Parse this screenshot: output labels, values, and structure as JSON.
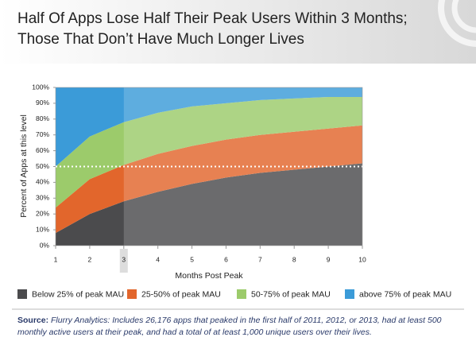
{
  "chart_data": {
    "type": "stacked_area",
    "title": "Half Of Apps Lose Half Their Peak Users Within 3 Months;",
    "subtitle": "Those That Don’t Have Much Longer Lives",
    "x_label": "Months Post Peak",
    "y_label": "Percent of Apps at this level",
    "x": [
      1,
      2,
      3,
      4,
      5,
      6,
      7,
      8,
      9,
      10
    ],
    "xlim": [
      1,
      10
    ],
    "xticks": [
      1,
      2,
      3,
      4,
      5,
      6,
      7,
      8,
      9,
      10
    ],
    "ylim": [
      0,
      100
    ],
    "yticks": [
      {
        "value": 0,
        "label": "0%"
      },
      {
        "value": 10,
        "label": "10%"
      },
      {
        "value": 20,
        "label": "20%"
      },
      {
        "value": 30,
        "label": "30%"
      },
      {
        "value": 40,
        "label": "40%"
      },
      {
        "value": 50,
        "label": "50%"
      },
      {
        "value": 60,
        "label": "60%"
      },
      {
        "value": 70,
        "label": "70%"
      },
      {
        "value": 80,
        "label": "80%"
      },
      {
        "value": 90,
        "label": "90%"
      },
      {
        "value": 100,
        "label": "100%"
      }
    ],
    "reference_line": 50,
    "highlight_x": 3,
    "series": [
      {
        "name": "Below 25% of peak MAU",
        "color": "#4b4b4d",
        "values": [
          8,
          20,
          28,
          34,
          39,
          43,
          46,
          48,
          50,
          52
        ]
      },
      {
        "name": "25-50% of peak MAU",
        "color": "#e2662c",
        "values": [
          16,
          22,
          23,
          24,
          24,
          24,
          24,
          24,
          24,
          24
        ]
      },
      {
        "name": "50-75% of peak MAU",
        "color": "#9ccb6b",
        "values": [
          26,
          27,
          27,
          26,
          25,
          23,
          22,
          21,
          20,
          18
        ]
      },
      {
        "name": "above 75% of peak MAU",
        "color": "#3b9bd8",
        "values": [
          50,
          31,
          22,
          16,
          12,
          10,
          8,
          7,
          6,
          6
        ]
      }
    ]
  },
  "source": {
    "label": "Source:",
    "text": "Flurry Analytics: Includes 26,176 apps that peaked in the first half of 2011, 2012, or 2013, had at least 500 monthly active users at their peak, and had a total of at least 1,000 unique users over their lives."
  }
}
